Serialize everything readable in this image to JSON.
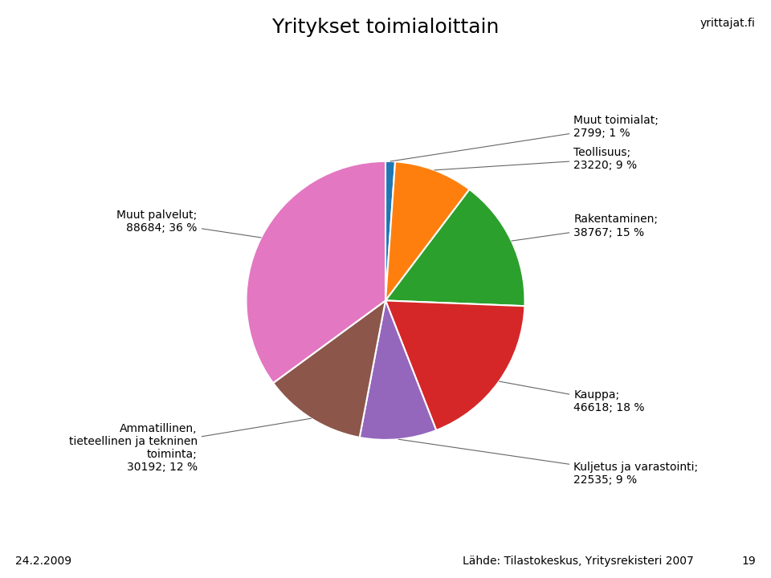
{
  "chart_data": {
    "type": "pie",
    "title": "Yritykset toimialoittain",
    "categories": [
      "Muut toimialat;\n2799; 1 %",
      "Teollisuus;\n23220; 9 %",
      "Rakentaminen;\n38767; 15 %",
      "Kauppa;\n46618; 18 %",
      "Kuljetus ja varastointi;\n22535; 9 %",
      "Ammatillinen,\ntieteellinen ja tekninen\ntoiminta;\n30192; 12 %",
      "Muut palvelut;\n88684; 36 %"
    ],
    "values": [
      2799,
      23220,
      38767,
      46618,
      22535,
      30192,
      88684
    ],
    "annotations": [
      "Lähde: Tilastokeskus, Yritysrekisteri 2007",
      "24.2.2009",
      "19",
      "yrittajat.fi"
    ]
  }
}
